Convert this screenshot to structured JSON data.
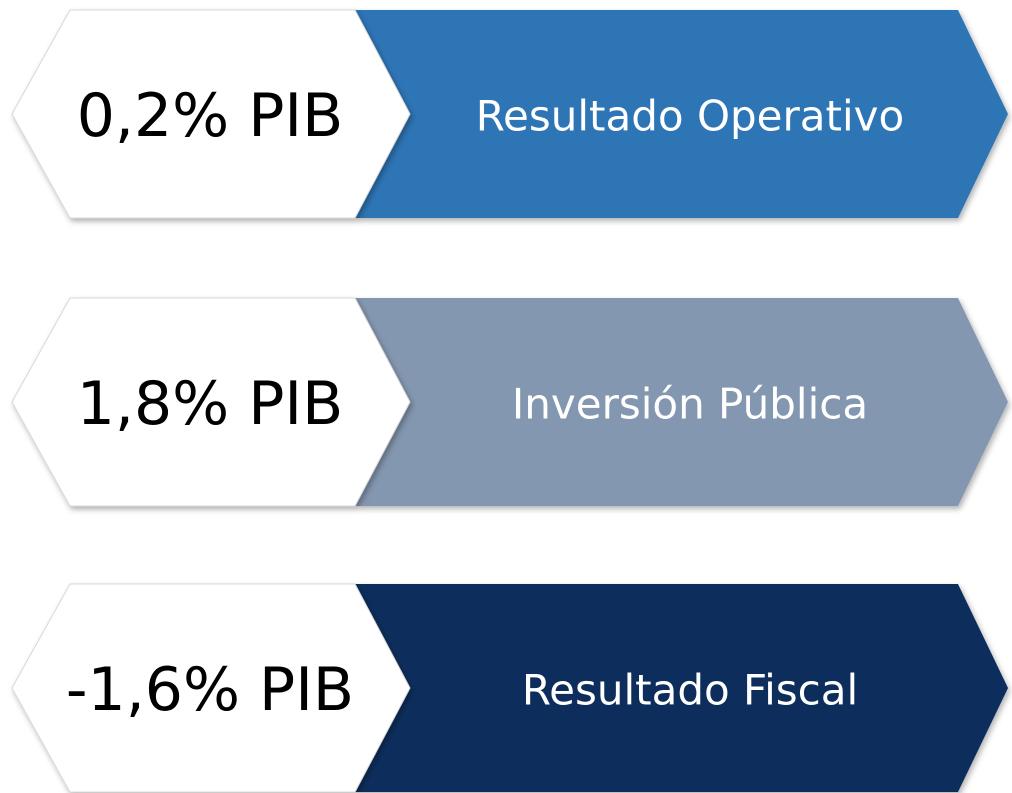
{
  "items": [
    {
      "value": "0,2% PIB",
      "label": "Resultado Operativo",
      "color": "#2e75b6"
    },
    {
      "value": "1,8% PIB",
      "label": "Inversión Pública",
      "color": "#8497b0"
    },
    {
      "value": "-1,6% PIB",
      "label": "Resultado Fiscal",
      "color": "#0f2e5b"
    }
  ]
}
